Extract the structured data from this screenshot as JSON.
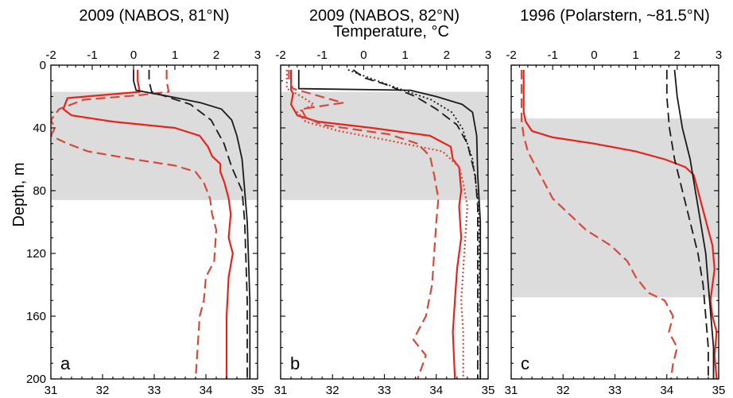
{
  "chart_data": {
    "type": "line",
    "shared": {
      "top_axis_label": "Temperature, °C",
      "y_axis_label": "Depth, m",
      "y_ticks": [
        "0",
        "40",
        "80",
        "120",
        "160",
        "200"
      ],
      "temperature_ticks": [
        "-2",
        "-1",
        "0",
        "1",
        "2",
        "3"
      ],
      "salinity_ticks": [
        "31",
        "32",
        "33",
        "34",
        "35"
      ],
      "ylim": [
        0,
        200
      ],
      "temperature_lim": [
        -2,
        3
      ],
      "salinity_lim": [
        31,
        35
      ],
      "colors": {
        "temperature": "#e8231c",
        "temperature_dashed": "#d44a3c",
        "salinity": "#1a1a1a"
      }
    },
    "panels": [
      {
        "title": "2009 (NABOS, 81°N)",
        "label": "a",
        "shaded_depth": [
          17,
          86
        ],
        "series": [
          {
            "var": "temperature",
            "style": "solid",
            "points": [
              [
                0.1,
                3
              ],
              [
                0.1,
                10
              ],
              [
                0.15,
                17
              ],
              [
                -1.6,
                21
              ],
              [
                -1.7,
                28
              ],
              [
                -1.5,
                32
              ],
              [
                -0.5,
                36
              ],
              [
                1.0,
                40
              ],
              [
                1.6,
                45
              ],
              [
                1.8,
                52
              ],
              [
                1.9,
                58
              ],
              [
                2.1,
                63
              ],
              [
                2.1,
                68
              ],
              [
                2.2,
                75
              ],
              [
                2.3,
                85
              ],
              [
                2.35,
                95
              ],
              [
                2.3,
                110
              ],
              [
                2.4,
                120
              ],
              [
                2.3,
                135
              ],
              [
                2.25,
                160
              ],
              [
                2.25,
                200
              ]
            ]
          },
          {
            "var": "temperature",
            "style": "dashed",
            "points": [
              [
                0.8,
                3
              ],
              [
                0.8,
                10
              ],
              [
                0.85,
                17
              ],
              [
                0.2,
                19
              ],
              [
                -1.2,
                22
              ],
              [
                -1.8,
                28
              ],
              [
                -2.0,
                35
              ],
              [
                -1.9,
                40
              ],
              [
                -2.0,
                45
              ],
              [
                -1.6,
                50
              ],
              [
                -1.1,
                55
              ],
              [
                0.0,
                60
              ],
              [
                1.0,
                64
              ],
              [
                1.5,
                68
              ],
              [
                1.7,
                75
              ],
              [
                1.85,
                85
              ],
              [
                1.9,
                95
              ],
              [
                2.0,
                105
              ],
              [
                1.95,
                125
              ],
              [
                1.75,
                135
              ],
              [
                1.7,
                150
              ],
              [
                1.6,
                160
              ],
              [
                1.55,
                180
              ],
              [
                1.5,
                200
              ]
            ]
          },
          {
            "var": "salinity",
            "style": "solid",
            "points": [
              [
                32.6,
                3
              ],
              [
                32.6,
                10
              ],
              [
                32.65,
                16
              ],
              [
                33.3,
                20
              ],
              [
                33.9,
                24
              ],
              [
                34.3,
                28
              ],
              [
                34.5,
                35
              ],
              [
                34.6,
                45
              ],
              [
                34.7,
                60
              ],
              [
                34.75,
                80
              ],
              [
                34.8,
                100
              ],
              [
                34.85,
                150
              ],
              [
                34.85,
                200
              ]
            ]
          },
          {
            "var": "salinity",
            "style": "dashed",
            "points": [
              [
                32.9,
                3
              ],
              [
                32.9,
                10
              ],
              [
                32.95,
                17
              ],
              [
                33.7,
                25
              ],
              [
                34.1,
                35
              ],
              [
                34.35,
                50
              ],
              [
                34.5,
                65
              ],
              [
                34.7,
                80
              ],
              [
                34.75,
                100
              ],
              [
                34.8,
                150
              ],
              [
                34.8,
                200
              ]
            ]
          }
        ]
      },
      {
        "title": "2009 (NABOS, 82°N)",
        "label": "b",
        "shaded_depth": [
          17,
          86
        ],
        "series": [
          {
            "var": "temperature",
            "style": "solid",
            "points": [
              [
                -1.75,
                3
              ],
              [
                -1.75,
                16
              ],
              [
                -1.7,
                18
              ],
              [
                -1.75,
                25
              ],
              [
                -1.6,
                32
              ],
              [
                -1.1,
                36
              ],
              [
                0.2,
                40
              ],
              [
                1.6,
                45
              ],
              [
                2.1,
                52
              ],
              [
                2.15,
                60
              ],
              [
                2.3,
                65
              ],
              [
                2.35,
                80
              ],
              [
                2.3,
                90
              ],
              [
                2.35,
                110
              ],
              [
                2.25,
                130
              ],
              [
                2.2,
                150
              ],
              [
                2.15,
                170
              ],
              [
                2.2,
                200
              ]
            ]
          },
          {
            "var": "temperature",
            "style": "dashed",
            "points": [
              [
                -1.8,
                3
              ],
              [
                -1.8,
                10
              ],
              [
                -1.7,
                15
              ],
              [
                -1.3,
                18
              ],
              [
                -0.9,
                21
              ],
              [
                -0.5,
                24
              ],
              [
                -1.5,
                28
              ],
              [
                -1.4,
                33
              ],
              [
                -1.0,
                38
              ],
              [
                0.6,
                44
              ],
              [
                1.3,
                50
              ],
              [
                1.6,
                58
              ],
              [
                1.7,
                70
              ],
              [
                1.8,
                85
              ],
              [
                1.75,
                100
              ],
              [
                1.7,
                120
              ],
              [
                1.65,
                140
              ],
              [
                1.5,
                160
              ],
              [
                1.2,
                175
              ],
              [
                1.5,
                185
              ],
              [
                1.3,
                200
              ]
            ]
          },
          {
            "var": "temperature",
            "style": "dotted",
            "points": [
              [
                -1.85,
                3
              ],
              [
                -1.85,
                15
              ],
              [
                -1.5,
                20
              ],
              [
                -1.2,
                25
              ],
              [
                -1.6,
                30
              ],
              [
                -1.4,
                36
              ],
              [
                -0.6,
                42
              ],
              [
                0.6,
                48
              ],
              [
                1.9,
                55
              ],
              [
                2.3,
                65
              ],
              [
                2.4,
                75
              ],
              [
                2.5,
                90
              ],
              [
                2.45,
                110
              ],
              [
                2.4,
                130
              ],
              [
                2.35,
                150
              ],
              [
                2.4,
                170
              ],
              [
                2.4,
                200
              ]
            ]
          },
          {
            "var": "salinity",
            "style": "solid",
            "points": [
              [
                31.35,
                3
              ],
              [
                31.35,
                15
              ],
              [
                33.5,
                16
              ],
              [
                34.0,
                20
              ],
              [
                34.5,
                25
              ],
              [
                34.7,
                30
              ],
              [
                34.78,
                45
              ],
              [
                34.8,
                70
              ],
              [
                34.85,
                100
              ],
              [
                34.85,
                200
              ]
            ]
          },
          {
            "var": "salinity",
            "style": "dashed",
            "points": [
              [
                32.4,
                3
              ],
              [
                32.6,
                8
              ],
              [
                33.0,
                12
              ],
              [
                33.6,
                20
              ],
              [
                34.0,
                28
              ],
              [
                34.4,
                38
              ],
              [
                34.6,
                50
              ],
              [
                34.75,
                70
              ],
              [
                34.8,
                90
              ],
              [
                34.8,
                200
              ]
            ]
          },
          {
            "var": "salinity",
            "style": "dotted",
            "points": [
              [
                32.3,
                3
              ],
              [
                32.7,
                8
              ],
              [
                33.2,
                14
              ],
              [
                33.9,
                22
              ],
              [
                34.3,
                30
              ],
              [
                34.5,
                40
              ],
              [
                34.7,
                60
              ],
              [
                34.82,
                90
              ],
              [
                34.85,
                200
              ]
            ]
          }
        ]
      },
      {
        "title": "1996 (Polarstern, ~81.5°N)",
        "label": "c",
        "shaded_depth": [
          34,
          148
        ],
        "series": [
          {
            "var": "temperature",
            "style": "solid",
            "points": [
              [
                -1.7,
                3
              ],
              [
                -1.7,
                30
              ],
              [
                -1.65,
                36
              ],
              [
                -1.5,
                42
              ],
              [
                -1.0,
                46
              ],
              [
                0.0,
                50
              ],
              [
                1.0,
                55
              ],
              [
                1.7,
                60
              ],
              [
                2.2,
                65
              ],
              [
                2.4,
                70
              ],
              [
                2.5,
                80
              ],
              [
                2.6,
                90
              ],
              [
                2.7,
                100
              ],
              [
                2.85,
                115
              ],
              [
                2.9,
                130
              ],
              [
                2.85,
                140
              ],
              [
                2.8,
                150
              ],
              [
                2.85,
                160
              ],
              [
                2.95,
                170
              ],
              [
                2.9,
                185
              ],
              [
                2.95,
                200
              ]
            ]
          },
          {
            "var": "temperature",
            "style": "dashed",
            "points": [
              [
                -1.75,
                3
              ],
              [
                -1.75,
                35
              ],
              [
                -1.7,
                45
              ],
              [
                -1.6,
                55
              ],
              [
                -1.4,
                65
              ],
              [
                -1.2,
                75
              ],
              [
                -1.0,
                85
              ],
              [
                -0.6,
                95
              ],
              [
                -0.2,
                105
              ],
              [
                0.4,
                115
              ],
              [
                0.8,
                125
              ],
              [
                1.0,
                135
              ],
              [
                1.3,
                145
              ],
              [
                1.7,
                150
              ],
              [
                1.9,
                160
              ],
              [
                1.8,
                170
              ],
              [
                2.0,
                180
              ],
              [
                1.9,
                190
              ],
              [
                1.85,
                200
              ]
            ]
          },
          {
            "var": "salinity",
            "style": "solid",
            "points": [
              [
                34.15,
                3
              ],
              [
                34.2,
                20
              ],
              [
                34.3,
                40
              ],
              [
                34.45,
                60
              ],
              [
                34.55,
                80
              ],
              [
                34.65,
                100
              ],
              [
                34.75,
                120
              ],
              [
                34.8,
                140
              ],
              [
                34.85,
                160
              ],
              [
                34.9,
                180
              ],
              [
                34.9,
                200
              ]
            ]
          },
          {
            "var": "salinity",
            "style": "dashed",
            "points": [
              [
                34.0,
                3
              ],
              [
                34.0,
                20
              ],
              [
                34.05,
                40
              ],
              [
                34.15,
                60
              ],
              [
                34.3,
                80
              ],
              [
                34.45,
                100
              ],
              [
                34.6,
                120
              ],
              [
                34.7,
                140
              ],
              [
                34.75,
                160
              ],
              [
                34.8,
                180
              ],
              [
                34.8,
                200
              ]
            ]
          }
        ]
      }
    ]
  }
}
